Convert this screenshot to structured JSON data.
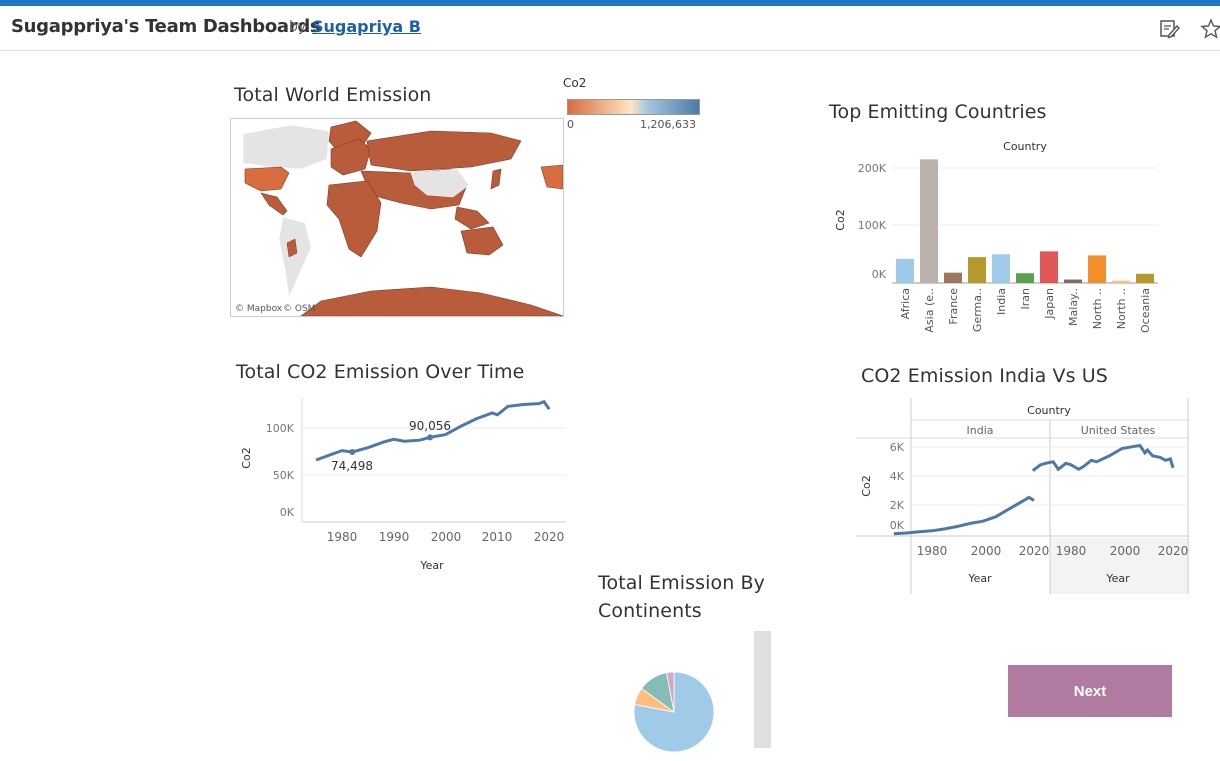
{
  "header": {
    "title": "Sugappriya's Team Dashboards",
    "by": "by",
    "author": "Sugapriya B",
    "icons": [
      "edit-icon",
      "star-icon"
    ]
  },
  "map": {
    "title": "Total World Emission",
    "legend_title": "Co2",
    "legend_min": "0",
    "legend_max": "1,206,633",
    "attribution_mapbox": "© Mapbox",
    "attribution_osm": "© OSM",
    "colors": {
      "low": "#d86d3f",
      "mid": "#fde6c5",
      "high": "#4e79a7",
      "fill": "#b85c3c",
      "nodata": "#e4e4e4"
    }
  },
  "top_countries": {
    "title": "Top Emitting Countries",
    "header": "Country",
    "ylabel": "Co2",
    "ticks": [
      "200K",
      "100K",
      "0K"
    ]
  },
  "over_time": {
    "title": "Total CO2 Emission Over Time",
    "ylabel": "Co2",
    "xlabel": "Year",
    "yticks": [
      "100K",
      "50K",
      "0K"
    ],
    "xticks": [
      "1980",
      "1990",
      "2000",
      "2010",
      "2020"
    ],
    "label_a": "74,498",
    "label_b": "90,056"
  },
  "india_us": {
    "title": "CO2 Emission India Vs US",
    "header": "Country",
    "panel_india": "India",
    "panel_us": "United States",
    "ylabel": "Co2",
    "xlabel": "Year",
    "yticks": [
      "6K",
      "4K",
      "2K",
      "0K"
    ],
    "xticks": [
      "1980",
      "2000",
      "2020"
    ]
  },
  "continents": {
    "title_line1": "Total Emission By",
    "title_line2": "Continents"
  },
  "next_button": "Next",
  "chart_data": [
    {
      "type": "map",
      "title": "Total World Emission",
      "legend": "Co2",
      "color_range": [
        0,
        1206633
      ]
    },
    {
      "type": "bar",
      "title": "Top Emitting Countries",
      "ylabel": "Co2",
      "categories": [
        "Africa",
        "Asia (e..",
        "France",
        "Germa..",
        "India",
        "Iran",
        "Japan",
        "Malay..",
        "North ..",
        "North ..",
        "Oceania"
      ],
      "values": [
        42000,
        215000,
        18000,
        45000,
        50000,
        17000,
        55000,
        6000,
        48000,
        4000,
        16000
      ],
      "colors": [
        "#9ecae9",
        "#bab0ac",
        "#9d7660",
        "#b6992d",
        "#a0cbe8",
        "#59a14f",
        "#e15759",
        "#79706e",
        "#f28e2b",
        "#ffbe7d",
        "#b6992d"
      ],
      "ylim": [
        0,
        230000
      ]
    },
    {
      "type": "line",
      "title": "Total CO2 Emission Over Time",
      "xlabel": "Year",
      "ylabel": "Co2",
      "x": [
        1975,
        1978,
        1980,
        1982,
        1985,
        1988,
        1990,
        1992,
        1995,
        1997,
        2000,
        2003,
        2006,
        2009,
        2010,
        2012,
        2015,
        2018,
        2019,
        2020
      ],
      "y": [
        66000,
        72000,
        76000,
        74498,
        79000,
        85000,
        88000,
        86000,
        87000,
        90056,
        93000,
        102000,
        110000,
        116000,
        114000,
        123000,
        125000,
        126000,
        128000,
        120000
      ],
      "xlim": [
        1972,
        2023
      ],
      "ylim": [
        0,
        130000
      ],
      "annotations": [
        {
          "x": 1982,
          "y": 74498,
          "text": "74,498"
        },
        {
          "x": 1997,
          "y": 90056,
          "text": "90,056"
        }
      ]
    },
    {
      "type": "line",
      "title": "CO2 Emission India Vs US",
      "xlabel": "Year",
      "ylabel": "Co2",
      "ylim": [
        0,
        6500
      ],
      "series": [
        {
          "name": "India",
          "x": [
            1965,
            1970,
            1975,
            1980,
            1985,
            1990,
            1995,
            2000,
            2005,
            2010,
            2015,
            2018,
            2020
          ],
          "y": [
            150,
            200,
            280,
            350,
            480,
            650,
            850,
            1000,
            1300,
            1800,
            2300,
            2600,
            2400
          ]
        },
        {
          "name": "United States",
          "x": [
            1965,
            1968,
            1970,
            1973,
            1975,
            1978,
            1980,
            1983,
            1985,
            1988,
            1990,
            1995,
            2000,
            2005,
            2007,
            2009,
            2010,
            2012,
            2015,
            2017,
            2019,
            2020
          ],
          "y": [
            4400,
            4800,
            4900,
            5000,
            4500,
            4900,
            4800,
            4500,
            4700,
            5100,
            5000,
            5400,
            5900,
            6050,
            6100,
            5600,
            5800,
            5400,
            5300,
            5100,
            5200,
            4600
          ]
        }
      ]
    },
    {
      "type": "pie",
      "title": "Total Emission By Continents",
      "slices": [
        {
          "value": 78,
          "color": "#a0cbe8"
        },
        {
          "value": 7,
          "color": "#ffbe7d"
        },
        {
          "value": 12,
          "color": "#86bcb6"
        },
        {
          "value": 3,
          "color": "#d4a6c8"
        }
      ]
    }
  ]
}
